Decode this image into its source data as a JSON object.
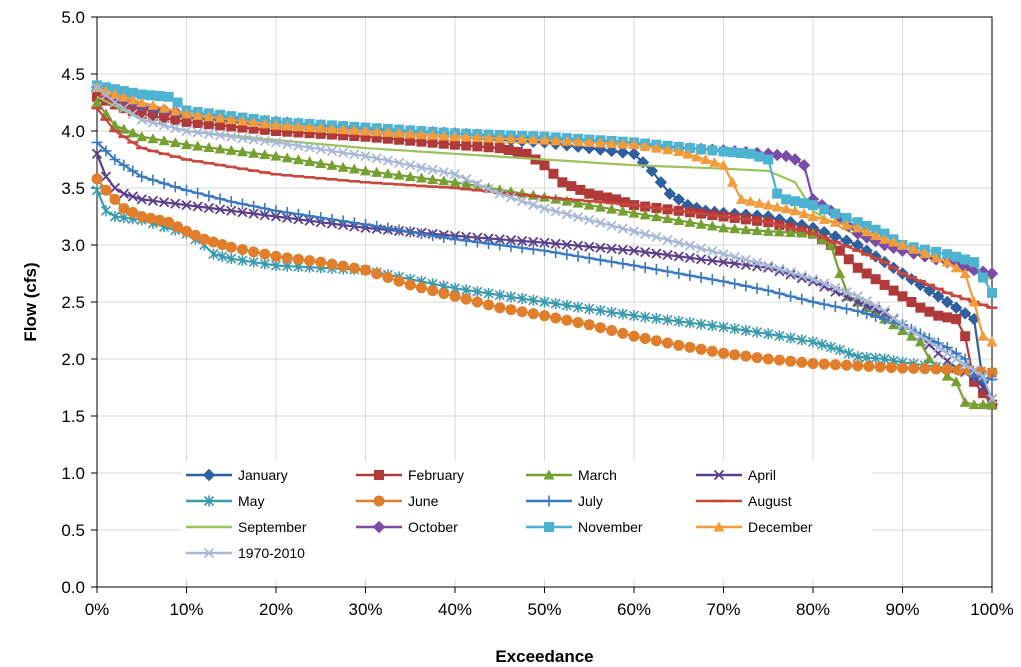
{
  "chart_data": {
    "type": "line",
    "title": "",
    "xlabel": "Exceedance",
    "ylabel": "Flow (cfs)",
    "xlim": [
      0,
      100
    ],
    "ylim": [
      0,
      5
    ],
    "x_ticks": [
      "0%",
      "10%",
      "20%",
      "30%",
      "40%",
      "50%",
      "60%",
      "70%",
      "80%",
      "90%",
      "100%"
    ],
    "y_ticks": [
      "0.0",
      "0.5",
      "1.0",
      "1.5",
      "2.0",
      "2.5",
      "3.0",
      "3.5",
      "4.0",
      "4.5",
      "5.0"
    ],
    "grid": true,
    "legend_position": "inside-bottom-left",
    "series": [
      {
        "name": "January",
        "color": "#2E5F9E",
        "marker": "diamond",
        "points": [
          [
            0,
            4.35
          ],
          [
            2,
            4.25
          ],
          [
            5,
            4.2
          ],
          [
            10,
            4.12
          ],
          [
            20,
            4.05
          ],
          [
            30,
            4.0
          ],
          [
            40,
            3.95
          ],
          [
            50,
            3.9
          ],
          [
            55,
            3.85
          ],
          [
            60,
            3.8
          ],
          [
            62,
            3.65
          ],
          [
            64,
            3.45
          ],
          [
            66,
            3.35
          ],
          [
            68,
            3.3
          ],
          [
            70,
            3.28
          ],
          [
            75,
            3.25
          ],
          [
            80,
            3.15
          ],
          [
            85,
            3.0
          ],
          [
            88,
            2.85
          ],
          [
            90,
            2.75
          ],
          [
            93,
            2.6
          ],
          [
            95,
            2.5
          ],
          [
            97,
            2.4
          ],
          [
            98,
            2.35
          ],
          [
            99,
            1.8
          ],
          [
            100,
            1.6
          ]
        ]
      },
      {
        "name": "February",
        "color": "#B03A3A",
        "marker": "square",
        "points": [
          [
            0,
            4.3
          ],
          [
            3,
            4.2
          ],
          [
            5,
            4.15
          ],
          [
            10,
            4.08
          ],
          [
            20,
            4.0
          ],
          [
            30,
            3.95
          ],
          [
            40,
            3.88
          ],
          [
            45,
            3.85
          ],
          [
            48,
            3.8
          ],
          [
            50,
            3.7
          ],
          [
            52,
            3.55
          ],
          [
            55,
            3.45
          ],
          [
            58,
            3.4
          ],
          [
            60,
            3.35
          ],
          [
            65,
            3.3
          ],
          [
            70,
            3.25
          ],
          [
            75,
            3.2
          ],
          [
            80,
            3.1
          ],
          [
            83,
            2.95
          ],
          [
            85,
            2.8
          ],
          [
            88,
            2.65
          ],
          [
            90,
            2.55
          ],
          [
            92,
            2.45
          ],
          [
            94,
            2.38
          ],
          [
            96,
            2.35
          ],
          [
            97,
            2.2
          ],
          [
            98,
            1.8
          ],
          [
            100,
            1.6
          ]
        ]
      },
      {
        "name": "March",
        "color": "#77A033",
        "marker": "triangle",
        "points": [
          [
            0,
            4.25
          ],
          [
            2,
            4.05
          ],
          [
            5,
            3.95
          ],
          [
            10,
            3.88
          ],
          [
            20,
            3.78
          ],
          [
            30,
            3.65
          ],
          [
            40,
            3.55
          ],
          [
            50,
            3.42
          ],
          [
            60,
            3.28
          ],
          [
            70,
            3.15
          ],
          [
            75,
            3.12
          ],
          [
            80,
            3.1
          ],
          [
            82,
            3.0
          ],
          [
            83,
            2.75
          ],
          [
            84,
            2.55
          ],
          [
            86,
            2.45
          ],
          [
            88,
            2.35
          ],
          [
            90,
            2.25
          ],
          [
            92,
            2.15
          ],
          [
            93,
            2.0
          ],
          [
            95,
            1.85
          ],
          [
            96,
            1.8
          ],
          [
            97,
            1.62
          ],
          [
            98,
            1.6
          ],
          [
            100,
            1.6
          ]
        ]
      },
      {
        "name": "April",
        "color": "#5C3F8C",
        "marker": "x",
        "points": [
          [
            0,
            3.8
          ],
          [
            1,
            3.6
          ],
          [
            2,
            3.5
          ],
          [
            3,
            3.45
          ],
          [
            5,
            3.4
          ],
          [
            10,
            3.35
          ],
          [
            20,
            3.25
          ],
          [
            30,
            3.15
          ],
          [
            40,
            3.08
          ],
          [
            50,
            3.02
          ],
          [
            60,
            2.95
          ],
          [
            70,
            2.85
          ],
          [
            75,
            2.8
          ],
          [
            80,
            2.68
          ],
          [
            85,
            2.5
          ],
          [
            88,
            2.4
          ],
          [
            90,
            2.3
          ],
          [
            92,
            2.2
          ],
          [
            94,
            2.05
          ],
          [
            96,
            1.92
          ],
          [
            98,
            1.85
          ],
          [
            100,
            1.65
          ]
        ]
      },
      {
        "name": "May",
        "color": "#3B9BAE",
        "marker": "asterisk",
        "points": [
          [
            0,
            3.48
          ],
          [
            1,
            3.3
          ],
          [
            2,
            3.25
          ],
          [
            5,
            3.22
          ],
          [
            10,
            3.1
          ],
          [
            12,
            3.0
          ],
          [
            13,
            2.92
          ],
          [
            15,
            2.88
          ],
          [
            20,
            2.82
          ],
          [
            25,
            2.8
          ],
          [
            30,
            2.78
          ],
          [
            40,
            2.62
          ],
          [
            50,
            2.5
          ],
          [
            60,
            2.38
          ],
          [
            70,
            2.28
          ],
          [
            75,
            2.22
          ],
          [
            80,
            2.15
          ],
          [
            83,
            2.08
          ],
          [
            85,
            2.02
          ],
          [
            88,
            2.0
          ],
          [
            90,
            1.97
          ],
          [
            95,
            1.92
          ],
          [
            100,
            1.88
          ]
        ]
      },
      {
        "name": "June",
        "color": "#E07E2C",
        "marker": "circle",
        "points": [
          [
            0,
            3.58
          ],
          [
            1,
            3.48
          ],
          [
            2,
            3.4
          ],
          [
            3,
            3.32
          ],
          [
            5,
            3.25
          ],
          [
            8,
            3.2
          ],
          [
            10,
            3.12
          ],
          [
            12,
            3.05
          ],
          [
            15,
            2.98
          ],
          [
            20,
            2.9
          ],
          [
            25,
            2.85
          ],
          [
            30,
            2.78
          ],
          [
            35,
            2.65
          ],
          [
            40,
            2.55
          ],
          [
            45,
            2.45
          ],
          [
            50,
            2.38
          ],
          [
            55,
            2.3
          ],
          [
            60,
            2.2
          ],
          [
            65,
            2.12
          ],
          [
            70,
            2.05
          ],
          [
            75,
            2.0
          ],
          [
            80,
            1.96
          ],
          [
            85,
            1.94
          ],
          [
            90,
            1.92
          ],
          [
            95,
            1.91
          ],
          [
            100,
            1.88
          ]
        ]
      },
      {
        "name": "July",
        "color": "#3A78C0",
        "marker": "plus",
        "points": [
          [
            0,
            3.9
          ],
          [
            2,
            3.75
          ],
          [
            5,
            3.6
          ],
          [
            10,
            3.48
          ],
          [
            15,
            3.38
          ],
          [
            20,
            3.3
          ],
          [
            30,
            3.18
          ],
          [
            40,
            3.05
          ],
          [
            50,
            2.95
          ],
          [
            60,
            2.82
          ],
          [
            70,
            2.68
          ],
          [
            75,
            2.6
          ],
          [
            80,
            2.5
          ],
          [
            85,
            2.42
          ],
          [
            88,
            2.35
          ],
          [
            90,
            2.3
          ],
          [
            92,
            2.22
          ],
          [
            95,
            2.1
          ],
          [
            97,
            2.0
          ],
          [
            98,
            1.85
          ],
          [
            100,
            1.82
          ]
        ]
      },
      {
        "name": "August",
        "color": "#C8463C",
        "marker": "dash",
        "points": [
          [
            0,
            4.2
          ],
          [
            2,
            4.0
          ],
          [
            5,
            3.85
          ],
          [
            10,
            3.75
          ],
          [
            20,
            3.62
          ],
          [
            30,
            3.55
          ],
          [
            40,
            3.5
          ],
          [
            50,
            3.42
          ],
          [
            60,
            3.35
          ],
          [
            70,
            3.25
          ],
          [
            75,
            3.2
          ],
          [
            80,
            3.1
          ],
          [
            85,
            2.95
          ],
          [
            88,
            2.85
          ],
          [
            90,
            2.75
          ],
          [
            93,
            2.65
          ],
          [
            95,
            2.58
          ],
          [
            98,
            2.5
          ],
          [
            100,
            2.45
          ]
        ]
      },
      {
        "name": "September",
        "color": "#9BC35A",
        "marker": "none",
        "points": [
          [
            0,
            4.3
          ],
          [
            5,
            4.1
          ],
          [
            10,
            4.0
          ],
          [
            20,
            3.92
          ],
          [
            30,
            3.85
          ],
          [
            40,
            3.8
          ],
          [
            50,
            3.75
          ],
          [
            60,
            3.7
          ],
          [
            70,
            3.67
          ],
          [
            75,
            3.65
          ],
          [
            78,
            3.55
          ],
          [
            80,
            3.3
          ],
          [
            82,
            3.2
          ],
          [
            85,
            3.08
          ],
          [
            88,
            3.0
          ],
          [
            90,
            2.95
          ],
          [
            95,
            2.85
          ],
          [
            100,
            2.7
          ]
        ]
      },
      {
        "name": "October",
        "color": "#7B4BA8",
        "marker": "diamond",
        "points": [
          [
            0,
            4.38
          ],
          [
            3,
            4.28
          ],
          [
            5,
            4.22
          ],
          [
            10,
            4.15
          ],
          [
            20,
            4.08
          ],
          [
            30,
            4.02
          ],
          [
            40,
            3.98
          ],
          [
            50,
            3.93
          ],
          [
            60,
            3.88
          ],
          [
            70,
            3.83
          ],
          [
            75,
            3.8
          ],
          [
            77,
            3.78
          ],
          [
            78,
            3.75
          ],
          [
            79,
            3.7
          ],
          [
            80,
            3.4
          ],
          [
            82,
            3.3
          ],
          [
            85,
            3.1
          ],
          [
            88,
            3.0
          ],
          [
            90,
            2.95
          ],
          [
            95,
            2.85
          ],
          [
            98,
            2.78
          ],
          [
            100,
            2.75
          ]
        ]
      },
      {
        "name": "November",
        "color": "#4DB3D3",
        "marker": "square",
        "points": [
          [
            0,
            4.4
          ],
          [
            3,
            4.35
          ],
          [
            5,
            4.32
          ],
          [
            8,
            4.3
          ],
          [
            9,
            4.25
          ],
          [
            10,
            4.18
          ],
          [
            20,
            4.08
          ],
          [
            30,
            4.03
          ],
          [
            40,
            3.98
          ],
          [
            50,
            3.95
          ],
          [
            60,
            3.9
          ],
          [
            70,
            3.82
          ],
          [
            73,
            3.8
          ],
          [
            75,
            3.75
          ],
          [
            76,
            3.45
          ],
          [
            77,
            3.4
          ],
          [
            80,
            3.35
          ],
          [
            85,
            3.2
          ],
          [
            88,
            3.1
          ],
          [
            90,
            3.0
          ],
          [
            95,
            2.92
          ],
          [
            98,
            2.85
          ],
          [
            100,
            2.58
          ]
        ]
      },
      {
        "name": "December",
        "color": "#F49B3A",
        "marker": "triangle",
        "points": [
          [
            0,
            4.38
          ],
          [
            2,
            4.32
          ],
          [
            5,
            4.25
          ],
          [
            10,
            4.15
          ],
          [
            20,
            4.05
          ],
          [
            30,
            4.0
          ],
          [
            40,
            3.95
          ],
          [
            50,
            3.92
          ],
          [
            60,
            3.88
          ],
          [
            65,
            3.82
          ],
          [
            68,
            3.75
          ],
          [
            70,
            3.7
          ],
          [
            71,
            3.55
          ],
          [
            72,
            3.4
          ],
          [
            75,
            3.35
          ],
          [
            78,
            3.3
          ],
          [
            80,
            3.25
          ],
          [
            85,
            3.15
          ],
          [
            88,
            3.05
          ],
          [
            90,
            3.0
          ],
          [
            95,
            2.85
          ],
          [
            97,
            2.75
          ],
          [
            98,
            2.5
          ],
          [
            99,
            2.2
          ],
          [
            100,
            2.15
          ]
        ]
      },
      {
        "name": "1970-2010",
        "color": "#A8B8D8",
        "marker": "x",
        "points": [
          [
            0,
            4.38
          ],
          [
            2,
            4.25
          ],
          [
            5,
            4.1
          ],
          [
            10,
            4.0
          ],
          [
            20,
            3.9
          ],
          [
            30,
            3.78
          ],
          [
            40,
            3.62
          ],
          [
            45,
            3.45
          ],
          [
            50,
            3.32
          ],
          [
            55,
            3.22
          ],
          [
            60,
            3.12
          ],
          [
            65,
            3.02
          ],
          [
            70,
            2.92
          ],
          [
            75,
            2.82
          ],
          [
            80,
            2.7
          ],
          [
            85,
            2.55
          ],
          [
            88,
            2.42
          ],
          [
            90,
            2.3
          ],
          [
            93,
            2.15
          ],
          [
            95,
            2.05
          ],
          [
            97,
            1.95
          ],
          [
            99,
            1.85
          ],
          [
            100,
            1.65
          ]
        ]
      }
    ]
  }
}
